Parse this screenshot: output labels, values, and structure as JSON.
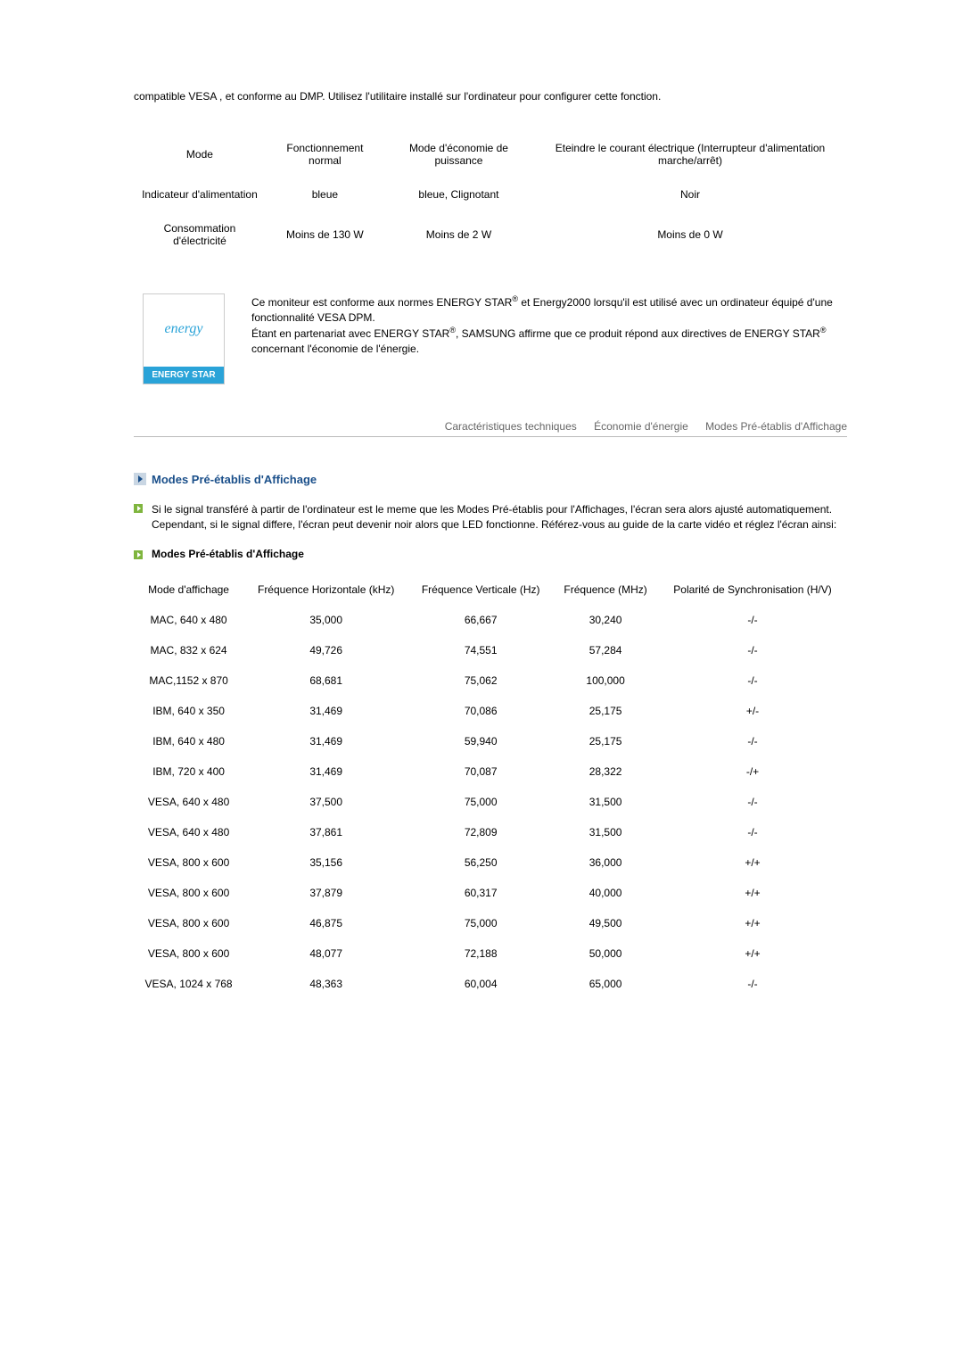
{
  "intro": "compatible VESA , et conforme au DMP. Utilisez l'utilitaire installé sur l'ordinateur pour configurer cette fonction.",
  "power_table": {
    "headers": [
      "Mode",
      "Fonctionnement normal",
      "Mode d'économie de puissance",
      "Eteindre le courant électrique (Interrupteur d'alimentation marche/arrêt)"
    ],
    "rows": [
      {
        "label": "Indicateur d'alimentation",
        "cells": [
          "bleue",
          "bleue, Clignotant",
          "Noir"
        ]
      },
      {
        "label": "Consommation d'électricité",
        "cells": [
          "Moins de 130 W",
          "Moins de 2 W",
          "Moins de 0 W"
        ]
      }
    ]
  },
  "energy_logo": {
    "script": "energy",
    "strip": "ENERGY STAR"
  },
  "energy_text": {
    "p1_a": "Ce moniteur est conforme aux normes ENERGY STAR",
    "p1_b": " et Energy2000 lorsqu'il est utilisé avec un ordinateur équipé d'une fonctionnalité VESA DPM.",
    "p2_a": "Étant en partenariat avec ENERGY STAR",
    "p2_b": ", SAMSUNG affirme que ce produit répond aux directives de ENERGY STAR",
    "p2_c": " concernant l'économie de l'énergie.",
    "reg": "®"
  },
  "tabs": [
    "Caractéristiques techniques",
    "Économie d'énergie",
    "Modes Pré-établis d'Affichage"
  ],
  "section_title": "Modes Pré-établis d'Affichage",
  "section_desc": "Si le signal transféré à partir de l'ordinateur est le meme que les Modes Pré-établis pour l'Affichages, l'écran sera alors ajusté automatiquement. Cependant, si le signal differe, l'écran peut devenir noir alors que LED fonctionne. Référez-vous au guide de la carte vidéo et réglez l'écran ainsi:",
  "sub_title": "Modes Pré-établis d'Affichage",
  "modes_table": {
    "columns": [
      "Mode d'affichage",
      "Fréquence Horizontale (kHz)",
      "Fréquence Verticale (Hz)",
      "Fréquence (MHz)",
      "Polarité de Synchronisation (H/V)"
    ],
    "rows": [
      [
        "MAC, 640 x 480",
        "35,000",
        "66,667",
        "30,240",
        "-/-"
      ],
      [
        "MAC, 832 x 624",
        "49,726",
        "74,551",
        "57,284",
        "-/-"
      ],
      [
        "MAC,1152 x 870",
        "68,681",
        "75,062",
        "100,000",
        "-/-"
      ],
      [
        "IBM, 640 x 350",
        "31,469",
        "70,086",
        "25,175",
        "+/-"
      ],
      [
        "IBM, 640 x 480",
        "31,469",
        "59,940",
        "25,175",
        "-/-"
      ],
      [
        "IBM, 720 x 400",
        "31,469",
        "70,087",
        "28,322",
        "-/+"
      ],
      [
        "VESA, 640 x 480",
        "37,500",
        "75,000",
        "31,500",
        "-/-"
      ],
      [
        "VESA, 640 x 480",
        "37,861",
        "72,809",
        "31,500",
        "-/-"
      ],
      [
        "VESA, 800 x 600",
        "35,156",
        "56,250",
        "36,000",
        "+/+"
      ],
      [
        "VESA, 800 x 600",
        "37,879",
        "60,317",
        "40,000",
        "+/+"
      ],
      [
        "VESA, 800 x 600",
        "46,875",
        "75,000",
        "49,500",
        "+/+"
      ],
      [
        "VESA, 800 x 600",
        "48,077",
        "72,188",
        "50,000",
        "+/+"
      ],
      [
        "VESA, 1024 x 768",
        "48,363",
        "60,004",
        "65,000",
        "-/-"
      ]
    ]
  }
}
